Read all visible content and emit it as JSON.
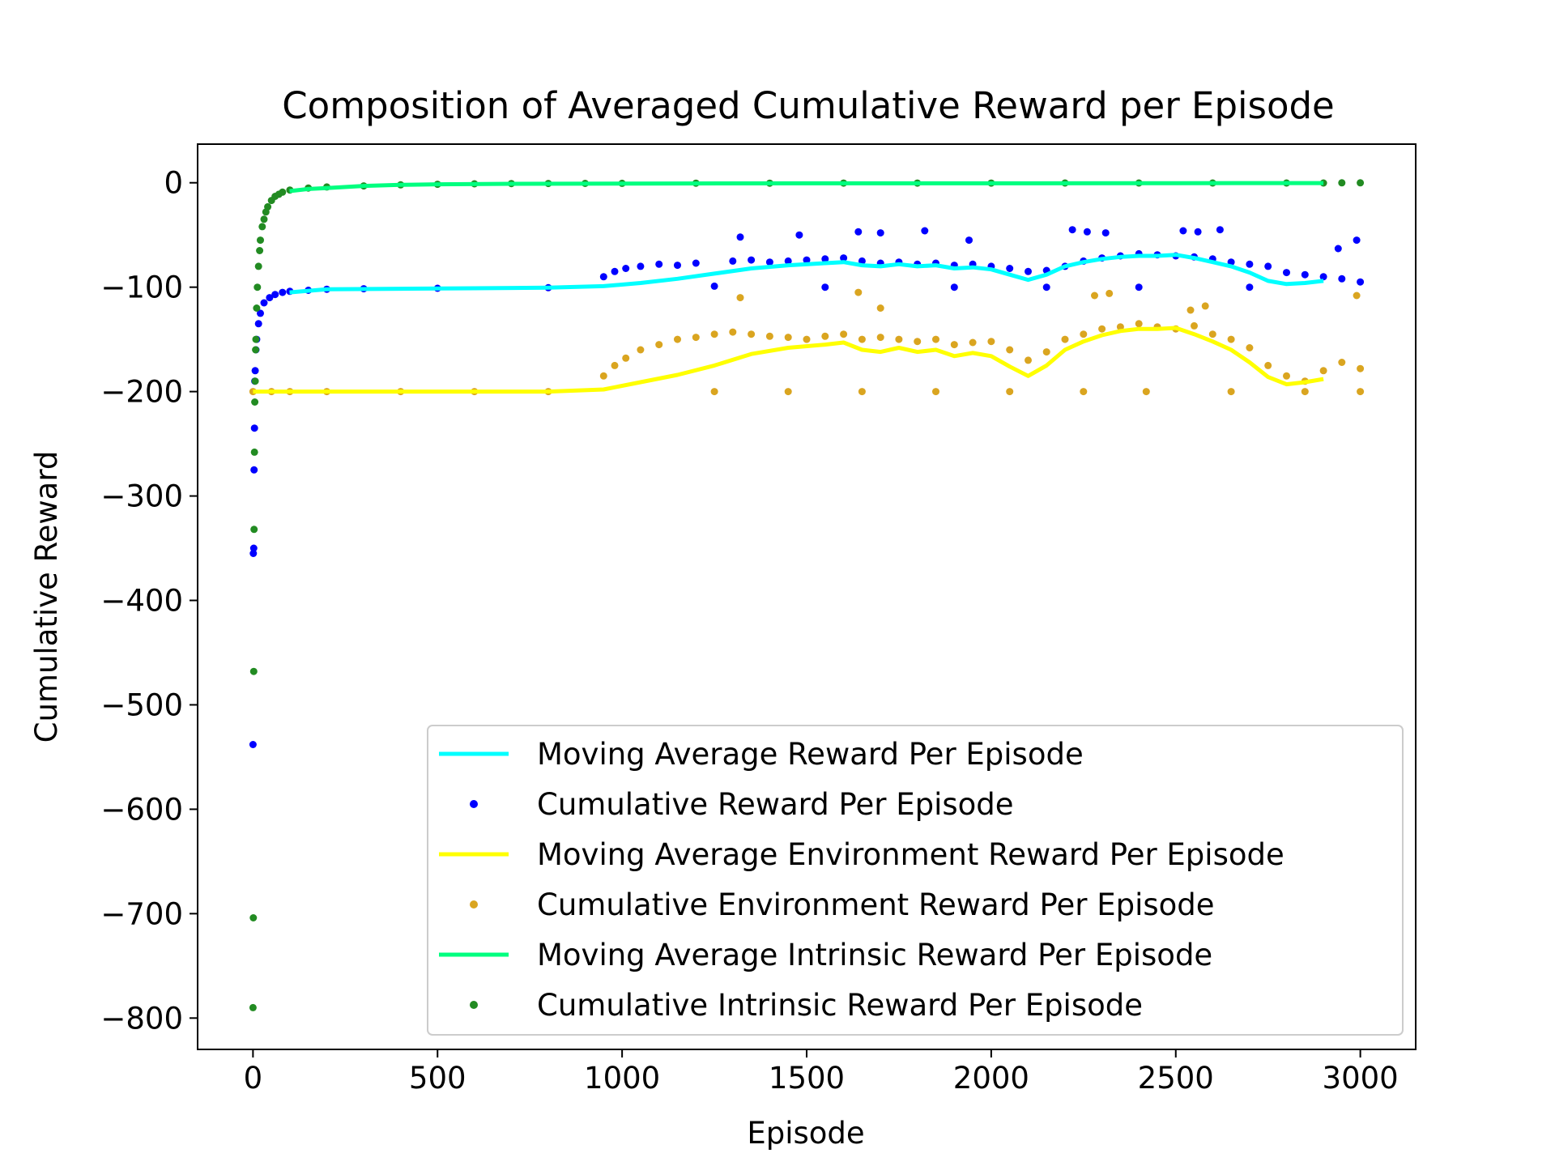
{
  "chart_data": {
    "type": "scatter",
    "title": "Composition of Averaged Cumulative Reward per Episode",
    "xlabel": "Episode",
    "ylabel": "Cumulative Reward",
    "xlim": [
      -150,
      3150
    ],
    "ylim": [
      -830,
      37
    ],
    "xticks": [
      0,
      500,
      1000,
      1500,
      2000,
      2500,
      3000
    ],
    "xtick_labels": [
      "0",
      "500",
      "1000",
      "1500",
      "2000",
      "2500",
      "3000"
    ],
    "yticks": [
      0,
      -100,
      -200,
      -300,
      -400,
      -500,
      -600,
      -700,
      -800
    ],
    "ytick_labels": [
      "0",
      "−100",
      "−200",
      "−300",
      "−400",
      "−500",
      "−600",
      "−700",
      "−800"
    ],
    "grid": false,
    "legend_position": "lower-right",
    "series": [
      {
        "name": "Moving Average Reward Per Episode",
        "kind": "line",
        "color": "#00ffff",
        "x": [
          99,
          200,
          400,
          600,
          800,
          950,
          1050,
          1150,
          1250,
          1350,
          1450,
          1550,
          1600,
          1650,
          1700,
          1750,
          1800,
          1850,
          1900,
          1950,
          2000,
          2050,
          2100,
          2150,
          2200,
          2250,
          2300,
          2350,
          2400,
          2450,
          2500,
          2550,
          2600,
          2650,
          2700,
          2750,
          2800,
          2850,
          2900
        ],
        "y": [
          -105,
          -102,
          -101.5,
          -101,
          -100.5,
          -99,
          -96,
          -92,
          -87,
          -82,
          -79,
          -77,
          -76,
          -79,
          -80,
          -78,
          -80,
          -79,
          -82,
          -81,
          -83,
          -88,
          -93,
          -88,
          -80,
          -76,
          -73,
          -71,
          -70,
          -70,
          -69,
          -72,
          -76,
          -80,
          -86,
          -94,
          -97,
          -96,
          -94
        ]
      },
      {
        "name": "Cumulative Reward Per Episode",
        "kind": "scatter",
        "color": "#0000ff",
        "x": [
          0,
          1,
          2,
          3,
          4,
          5,
          6,
          8,
          10,
          15,
          20,
          30,
          45,
          60,
          80,
          100,
          150,
          200,
          300,
          500,
          800,
          950,
          980,
          1010,
          1050,
          1100,
          1150,
          1200,
          1300,
          1350,
          1400,
          1450,
          1500,
          1550,
          1600,
          1650,
          1700,
          1750,
          1800,
          1850,
          1900,
          1950,
          2000,
          2050,
          2100,
          2150,
          2200,
          2250,
          2300,
          2350,
          2400,
          2450,
          2500,
          2550,
          2600,
          2650,
          2700,
          2750,
          2800,
          2850,
          2900,
          2950,
          3000,
          1320,
          1480,
          1640,
          1700,
          1820,
          1940,
          2220,
          2260,
          2310,
          2520,
          2560,
          2620,
          2940,
          2990,
          1250,
          1550,
          1900,
          2150,
          2400,
          2700
        ],
        "y": [
          -538,
          -355,
          -350,
          -275,
          -235,
          -190,
          -180,
          -160,
          -150,
          -135,
          -125,
          -115,
          -110,
          -107,
          -105,
          -104,
          -103,
          -102,
          -101.5,
          -101,
          -100.5,
          -90,
          -85,
          -82,
          -80,
          -78,
          -79,
          -77,
          -75,
          -74,
          -76,
          -75,
          -74,
          -73,
          -72,
          -75,
          -77,
          -76,
          -78,
          -77,
          -79,
          -78,
          -80,
          -82,
          -85,
          -84,
          -80,
          -75,
          -72,
          -70,
          -68,
          -69,
          -70,
          -71,
          -73,
          -76,
          -78,
          -80,
          -86,
          -88,
          -90,
          -92,
          -95,
          -52,
          -50,
          -47,
          -48,
          -46,
          -55,
          -45,
          -47,
          -48,
          -46,
          -47,
          -45,
          -63,
          -55,
          -99,
          -100,
          -100,
          -100,
          -100,
          -100
        ]
      },
      {
        "name": "Moving Average Environment Reward Per Episode",
        "kind": "line",
        "color": "#ffff00",
        "x": [
          0,
          200,
          400,
          600,
          800,
          950,
          1050,
          1150,
          1250,
          1350,
          1450,
          1550,
          1600,
          1650,
          1700,
          1750,
          1800,
          1850,
          1900,
          1950,
          2000,
          2050,
          2100,
          2150,
          2200,
          2250,
          2300,
          2350,
          2400,
          2450,
          2500,
          2550,
          2600,
          2650,
          2700,
          2750,
          2800,
          2850,
          2900
        ],
        "y": [
          -200,
          -200,
          -200,
          -200,
          -200,
          -198,
          -191,
          -184,
          -175,
          -164,
          -158,
          -155,
          -153,
          -160,
          -162,
          -158,
          -162,
          -160,
          -166,
          -163,
          -166,
          -176,
          -185,
          -175,
          -160,
          -152,
          -146,
          -142,
          -140,
          -140,
          -139,
          -145,
          -152,
          -160,
          -172,
          -186,
          -193,
          -191,
          -188
        ]
      },
      {
        "name": "Cumulative Environment Reward Per Episode",
        "kind": "scatter",
        "color": "#daa520",
        "x": [
          0,
          50,
          100,
          200,
          400,
          600,
          800,
          950,
          980,
          1010,
          1050,
          1100,
          1150,
          1200,
          1250,
          1300,
          1350,
          1400,
          1450,
          1500,
          1550,
          1600,
          1650,
          1700,
          1750,
          1800,
          1850,
          1900,
          1950,
          2000,
          2050,
          2100,
          2150,
          2200,
          2250,
          2300,
          2350,
          2400,
          2450,
          2500,
          2550,
          2600,
          2650,
          2700,
          2750,
          2800,
          2850,
          2900,
          2950,
          3000,
          1320,
          1640,
          1700,
          2280,
          2320,
          2540,
          2580,
          2990,
          1250,
          1450,
          1650,
          1850,
          2050,
          2250,
          2420,
          2650,
          2850,
          3000
        ],
        "y": [
          -200,
          -200,
          -200,
          -200,
          -200,
          -200,
          -200,
          -185,
          -175,
          -168,
          -160,
          -155,
          -150,
          -148,
          -145,
          -143,
          -145,
          -147,
          -148,
          -150,
          -147,
          -145,
          -150,
          -148,
          -150,
          -152,
          -150,
          -155,
          -153,
          -152,
          -160,
          -170,
          -162,
          -150,
          -145,
          -140,
          -138,
          -135,
          -138,
          -140,
          -137,
          -145,
          -150,
          -158,
          -175,
          -185,
          -190,
          -180,
          -172,
          -178,
          -110,
          -105,
          -120,
          -108,
          -106,
          -122,
          -118,
          -108,
          -200,
          -200,
          -200,
          -200,
          -200,
          -200,
          -200,
          -200,
          -200,
          -200
        ]
      },
      {
        "name": "Moving Average Intrinsic Reward Per Episode",
        "kind": "line",
        "color": "#00ff7f",
        "x": [
          99,
          150,
          200,
          300,
          400,
          500,
          700,
          1000,
          1500,
          2000,
          2500,
          2900
        ],
        "y": [
          -8,
          -6,
          -5,
          -3,
          -2,
          -1.5,
          -1,
          -0.8,
          -0.5,
          -0.5,
          -0.4,
          -0.3
        ]
      },
      {
        "name": "Cumulative Intrinsic Reward Per Episode",
        "kind": "scatter",
        "color": "#228b22",
        "x": [
          0,
          1,
          2,
          3,
          4,
          5,
          6,
          7,
          8,
          10,
          12,
          15,
          18,
          20,
          25,
          30,
          35,
          40,
          50,
          60,
          70,
          80,
          100,
          150,
          200,
          300,
          400,
          500,
          600,
          700,
          800,
          900,
          1000,
          1200,
          1400,
          1600,
          1800,
          2000,
          2200,
          2400,
          2600,
          2800,
          2900,
          2950,
          3000
        ],
        "y": [
          -790,
          -704,
          -468,
          -332,
          -258,
          -210,
          -190,
          -160,
          -150,
          -120,
          -100,
          -80,
          -65,
          -55,
          -42,
          -35,
          -28,
          -23,
          -17,
          -13,
          -11,
          -9,
          -7,
          -5,
          -4,
          -3,
          -2,
          -1.5,
          -1,
          -0.8,
          -0.7,
          -0.6,
          -0.5,
          -0.4,
          -0.4,
          -0.3,
          -0.3,
          -0.3,
          -0.2,
          -0.2,
          -0.2,
          -0.2,
          -0.2,
          -0.1,
          -0.1
        ]
      }
    ]
  }
}
